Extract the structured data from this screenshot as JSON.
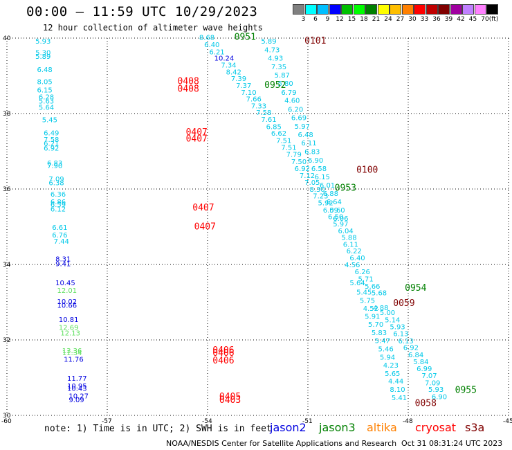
{
  "header": {
    "title": "00:00 – 11:59 UTC 10/29/2023",
    "subtitle": "12 hour collection of altimeter wave heights"
  },
  "colorbar": {
    "colors": [
      "#808080",
      "#00ffff",
      "#00bfff",
      "#0000ff",
      "#00c000",
      "#00ff00",
      "#008000",
      "#ffff00",
      "#ffbf00",
      "#ff8000",
      "#ff0000",
      "#c00000",
      "#800000",
      "#a000a0",
      "#c080ff",
      "#ff80ff",
      "#000000"
    ],
    "labels": [
      "3",
      "6",
      "9",
      "12",
      "15",
      "18",
      "21",
      "24",
      "27",
      "30",
      "33",
      "36",
      "39",
      "42",
      "45",
      "70",
      "(ft)"
    ]
  },
  "axes": {
    "x_ticks": [
      "-60",
      "-57",
      "-54",
      "-51",
      "-48",
      "-45"
    ],
    "x_values": [
      -60,
      -57,
      -54,
      -51,
      -48,
      -45
    ],
    "y_ticks": [
      "30",
      "32",
      "34",
      "36",
      "38",
      "40"
    ],
    "y_values": [
      30,
      32,
      34,
      36,
      38,
      40
    ],
    "x_range": [
      -60,
      -45
    ],
    "y_range": [
      30,
      40
    ]
  },
  "map_data": {
    "colors": {
      "cyan": "#00c8e8",
      "cyan2": "#10b4e0",
      "blue": "#0000e0",
      "lgreen": "#60e060",
      "green": "#008000",
      "red": "#ff0000",
      "maroon": "#800000"
    },
    "labels": [
      {
        "t": "8.68",
        "lon": -54.25,
        "lat": 39.95,
        "c": "cyan"
      },
      {
        "t": "6.40",
        "lon": -54.1,
        "lat": 39.76,
        "c": "cyan"
      },
      {
        "t": "6.21",
        "lon": -53.95,
        "lat": 39.57,
        "c": "cyan"
      },
      {
        "t": "10.24",
        "lon": -53.8,
        "lat": 39.4,
        "c": "blue"
      },
      {
        "t": "7.34",
        "lon": -53.6,
        "lat": 39.22,
        "c": "cyan"
      },
      {
        "t": "8.42",
        "lon": -53.45,
        "lat": 39.04,
        "c": "cyan"
      },
      {
        "t": "7.39",
        "lon": -53.3,
        "lat": 38.86,
        "c": "cyan"
      },
      {
        "t": "7.37",
        "lon": -53.15,
        "lat": 38.68,
        "c": "cyan"
      },
      {
        "t": "7.10",
        "lon": -53.0,
        "lat": 38.5,
        "c": "cyan"
      },
      {
        "t": "7.66",
        "lon": -52.85,
        "lat": 38.32,
        "c": "cyan"
      },
      {
        "t": "7.33",
        "lon": -52.7,
        "lat": 38.14,
        "c": "cyan"
      },
      {
        "t": "7.58",
        "lon": -52.55,
        "lat": 37.96,
        "c": "cyan"
      },
      {
        "t": "7.61",
        "lon": -52.4,
        "lat": 37.78,
        "c": "cyan"
      },
      {
        "t": "6.85",
        "lon": -52.25,
        "lat": 37.59,
        "c": "cyan"
      },
      {
        "t": "6.62",
        "lon": -52.1,
        "lat": 37.41,
        "c": "cyan"
      },
      {
        "t": "7.51",
        "lon": -51.95,
        "lat": 37.22,
        "c": "cyan"
      },
      {
        "t": "7.51",
        "lon": -51.8,
        "lat": 37.04,
        "c": "cyan"
      },
      {
        "t": "7.79",
        "lon": -51.65,
        "lat": 36.85,
        "c": "cyan"
      },
      {
        "t": "7.50",
        "lon": -51.5,
        "lat": 36.66,
        "c": "cyan"
      },
      {
        "t": "6.92",
        "lon": -51.4,
        "lat": 36.48,
        "c": "cyan"
      },
      {
        "t": "7.12",
        "lon": -51.25,
        "lat": 36.29,
        "c": "cyan"
      },
      {
        "t": "7.05",
        "lon": -51.1,
        "lat": 36.11,
        "c": "cyan"
      },
      {
        "t": "8.30",
        "lon": -50.95,
        "lat": 35.93,
        "c": "cyan"
      },
      {
        "t": "7.23",
        "lon": -50.85,
        "lat": 35.75,
        "c": "cyan"
      },
      {
        "t": "5.92",
        "lon": -50.7,
        "lat": 35.57,
        "c": "cyan"
      },
      {
        "t": "6.09",
        "lon": -50.55,
        "lat": 35.38,
        "c": "cyan"
      },
      {
        "t": "6.50",
        "lon": -50.4,
        "lat": 35.2,
        "c": "cyan"
      },
      {
        "t": "5.97",
        "lon": -50.25,
        "lat": 35.01,
        "c": "cyan"
      },
      {
        "t": "6.04",
        "lon": -50.1,
        "lat": 34.83,
        "c": "cyan"
      },
      {
        "t": "5.88",
        "lon": -50.0,
        "lat": 34.65,
        "c": "cyan"
      },
      {
        "t": "6.11",
        "lon": -49.95,
        "lat": 34.47,
        "c": "cyan"
      },
      {
        "t": "6.22",
        "lon": -49.85,
        "lat": 34.29,
        "c": "cyan"
      },
      {
        "t": "6.40",
        "lon": -49.75,
        "lat": 34.11,
        "c": "cyan"
      },
      {
        "t": "4.56",
        "lon": -49.9,
        "lat": 33.93,
        "c": "cyan"
      },
      {
        "t": "6.26",
        "lon": -49.6,
        "lat": 33.74,
        "c": "cyan"
      },
      {
        "t": "5.71",
        "lon": -49.5,
        "lat": 33.55,
        "c": "cyan"
      },
      {
        "t": "5.64",
        "lon": -49.75,
        "lat": 33.45,
        "c": "cyan"
      },
      {
        "t": "5.66",
        "lon": -49.3,
        "lat": 33.36,
        "c": "cyan"
      },
      {
        "t": "5.45",
        "lon": -49.55,
        "lat": 33.2,
        "c": "cyan"
      },
      {
        "t": "5.68",
        "lon": -49.1,
        "lat": 33.18,
        "c": "cyan"
      },
      {
        "t": "5.75",
        "lon": -49.45,
        "lat": 32.98,
        "c": "cyan"
      },
      {
        "t": "4.52",
        "lon": -49.35,
        "lat": 32.77,
        "c": "cyan"
      },
      {
        "t": "4.88",
        "lon": -49.05,
        "lat": 32.79,
        "c": "cyan"
      },
      {
        "t": "5.00",
        "lon": -48.85,
        "lat": 32.66,
        "c": "cyan"
      },
      {
        "t": "5.91",
        "lon": -49.3,
        "lat": 32.56,
        "c": "cyan"
      },
      {
        "t": "5.14",
        "lon": -48.7,
        "lat": 32.47,
        "c": "cyan"
      },
      {
        "t": "5.70",
        "lon": -49.2,
        "lat": 32.35,
        "c": "cyan"
      },
      {
        "t": "5.93",
        "lon": -48.55,
        "lat": 32.28,
        "c": "cyan"
      },
      {
        "t": "5.83",
        "lon": -49.1,
        "lat": 32.13,
        "c": "cyan"
      },
      {
        "t": "6.13",
        "lon": -48.45,
        "lat": 32.1,
        "c": "cyan"
      },
      {
        "t": "5.47",
        "lon": -49.0,
        "lat": 31.92,
        "c": "cyan"
      },
      {
        "t": "6.13",
        "lon": -48.3,
        "lat": 31.91,
        "c": "cyan"
      },
      {
        "t": "6.92",
        "lon": -48.15,
        "lat": 31.73,
        "c": "cyan"
      },
      {
        "t": "5.46",
        "lon": -48.9,
        "lat": 31.7,
        "c": "cyan"
      },
      {
        "t": "6.84",
        "lon": -48.0,
        "lat": 31.54,
        "c": "cyan"
      },
      {
        "t": "5.94",
        "lon": -48.85,
        "lat": 31.48,
        "c": "cyan"
      },
      {
        "t": "5.84",
        "lon": -47.85,
        "lat": 31.36,
        "c": "cyan"
      },
      {
        "t": "4.23",
        "lon": -48.75,
        "lat": 31.27,
        "c": "cyan"
      },
      {
        "t": "6.99",
        "lon": -47.75,
        "lat": 31.17,
        "c": "cyan"
      },
      {
        "t": "5.65",
        "lon": -48.7,
        "lat": 31.05,
        "c": "cyan"
      },
      {
        "t": "7.07",
        "lon": -47.6,
        "lat": 30.99,
        "c": "cyan"
      },
      {
        "t": "4.44",
        "lon": -48.6,
        "lat": 30.84,
        "c": "cyan"
      },
      {
        "t": "7.09",
        "lon": -47.5,
        "lat": 30.8,
        "c": "cyan"
      },
      {
        "t": "5.93",
        "lon": -47.4,
        "lat": 30.62,
        "c": "cyan"
      },
      {
        "t": "8.10",
        "lon": -48.55,
        "lat": 30.62,
        "c": "cyan"
      },
      {
        "t": "6.90",
        "lon": -47.3,
        "lat": 30.43,
        "c": "cyan"
      },
      {
        "t": "5.41",
        "lon": -48.5,
        "lat": 30.4,
        "c": "cyan"
      },
      {
        "t": "5.89",
        "lon": -52.4,
        "lat": 39.85,
        "c": "cyan"
      },
      {
        "t": "4.73",
        "lon": -52.3,
        "lat": 39.62,
        "c": "cyan"
      },
      {
        "t": "4.93",
        "lon": -52.2,
        "lat": 39.4,
        "c": "cyan"
      },
      {
        "t": "7.35",
        "lon": -52.1,
        "lat": 39.17,
        "c": "cyan"
      },
      {
        "t": "5.87",
        "lon": -52.0,
        "lat": 38.95,
        "c": "cyan"
      },
      {
        "t": "5.80",
        "lon": -51.9,
        "lat": 38.73,
        "c": "cyan"
      },
      {
        "t": "6.79",
        "lon": -51.8,
        "lat": 38.5,
        "c": "cyan"
      },
      {
        "t": "4.60",
        "lon": -51.7,
        "lat": 38.28,
        "c": "cyan"
      },
      {
        "t": "6.20",
        "lon": -51.6,
        "lat": 38.05,
        "c": "cyan"
      },
      {
        "t": "6.69",
        "lon": -51.5,
        "lat": 37.83,
        "c": "cyan"
      },
      {
        "t": "5.97",
        "lon": -51.4,
        "lat": 37.6,
        "c": "cyan"
      },
      {
        "t": "6.48",
        "lon": -51.3,
        "lat": 37.38,
        "c": "cyan"
      },
      {
        "t": "6.11",
        "lon": -51.2,
        "lat": 37.16,
        "c": "cyan"
      },
      {
        "t": "6.83",
        "lon": -51.1,
        "lat": 36.93,
        "c": "cyan"
      },
      {
        "t": "6.90",
        "lon": -51.0,
        "lat": 36.7,
        "c": "cyan"
      },
      {
        "t": "6.58",
        "lon": -50.9,
        "lat": 36.48,
        "c": "cyan"
      },
      {
        "t": "6.15",
        "lon": -50.8,
        "lat": 36.26,
        "c": "cyan"
      },
      {
        "t": "6.01",
        "lon": -50.65,
        "lat": 36.04,
        "c": "cyan"
      },
      {
        "t": "6.88",
        "lon": -50.55,
        "lat": 35.82,
        "c": "cyan"
      },
      {
        "t": "6.64",
        "lon": -50.45,
        "lat": 35.6,
        "c": "cyan"
      },
      {
        "t": "5.60",
        "lon": -50.35,
        "lat": 35.38,
        "c": "cyan"
      },
      {
        "t": "6.06",
        "lon": -50.25,
        "lat": 35.16,
        "c": "cyan"
      },
      {
        "t": "5.93",
        "lon": -59.15,
        "lat": 39.85,
        "c": "cyan"
      },
      {
        "t": "5.30",
        "lon": -59.15,
        "lat": 39.55,
        "c": "cyan"
      },
      {
        "t": "5.89",
        "lon": -59.15,
        "lat": 39.45,
        "c": "cyan"
      },
      {
        "t": "6.48",
        "lon": -59.1,
        "lat": 39.1,
        "c": "cyan"
      },
      {
        "t": "8.05",
        "lon": -59.1,
        "lat": 38.78,
        "c": "cyan"
      },
      {
        "t": "6.15",
        "lon": -59.1,
        "lat": 38.56,
        "c": "cyan"
      },
      {
        "t": "6.28",
        "lon": -59.05,
        "lat": 38.38,
        "c": "cyan"
      },
      {
        "t": "5.63",
        "lon": -59.05,
        "lat": 38.27,
        "c": "cyan"
      },
      {
        "t": "5.64",
        "lon": -59.05,
        "lat": 38.1,
        "c": "cyan"
      },
      {
        "t": "5.45",
        "lon": -58.95,
        "lat": 37.77,
        "c": "cyan"
      },
      {
        "t": "6.49",
        "lon": -58.9,
        "lat": 37.42,
        "c": "cyan"
      },
      {
        "t": "7.58",
        "lon": -58.9,
        "lat": 37.25,
        "c": "cyan"
      },
      {
        "t": "6.21",
        "lon": -58.9,
        "lat": 37.15,
        "c": "cyan"
      },
      {
        "t": "6.92",
        "lon": -58.9,
        "lat": 37.02,
        "c": "cyan"
      },
      {
        "t": "6.83",
        "lon": -58.8,
        "lat": 36.62,
        "c": "cyan"
      },
      {
        "t": "7.90",
        "lon": -58.8,
        "lat": 36.55,
        "c": "cyan"
      },
      {
        "t": "7.09",
        "lon": -58.75,
        "lat": 36.2,
        "c": "cyan"
      },
      {
        "t": "6.38",
        "lon": -58.75,
        "lat": 36.1,
        "c": "cyan"
      },
      {
        "t": "6.36",
        "lon": -58.7,
        "lat": 35.8,
        "c": "cyan"
      },
      {
        "t": "6.86",
        "lon": -58.7,
        "lat": 35.6,
        "c": "cyan"
      },
      {
        "t": "6.59",
        "lon": -58.7,
        "lat": 35.52,
        "c": "cyan"
      },
      {
        "t": "6.12",
        "lon": -58.7,
        "lat": 35.4,
        "c": "cyan"
      },
      {
        "t": "6.61",
        "lon": -58.65,
        "lat": 34.92,
        "c": "cyan"
      },
      {
        "t": "6.76",
        "lon": -58.65,
        "lat": 34.72,
        "c": "cyan"
      },
      {
        "t": "7.44",
        "lon": -58.6,
        "lat": 34.55,
        "c": "cyan"
      },
      {
        "t": "8.31",
        "lon": -58.55,
        "lat": 34.08,
        "c": "blue"
      },
      {
        "t": "9.41",
        "lon": -58.55,
        "lat": 33.95,
        "c": "blue"
      },
      {
        "t": "10.45",
        "lon": -58.55,
        "lat": 33.45,
        "c": "blue"
      },
      {
        "t": "12.01",
        "lon": -58.5,
        "lat": 33.25,
        "c": "lgreen"
      },
      {
        "t": "10.02",
        "lon": -58.5,
        "lat": 32.95,
        "c": "blue"
      },
      {
        "t": "10.66",
        "lon": -58.5,
        "lat": 32.85,
        "c": "blue"
      },
      {
        "t": "10.81",
        "lon": -58.45,
        "lat": 32.48,
        "c": "blue"
      },
      {
        "t": "12.69",
        "lon": -58.45,
        "lat": 32.27,
        "c": "lgreen"
      },
      {
        "t": "12.13",
        "lon": -58.4,
        "lat": 32.12,
        "c": "lgreen"
      },
      {
        "t": "13.36",
        "lon": -58.35,
        "lat": 31.65,
        "c": "lgreen"
      },
      {
        "t": "11.34",
        "lon": -58.35,
        "lat": 31.6,
        "c": "lgreen"
      },
      {
        "t": "11.76",
        "lon": -58.3,
        "lat": 31.42,
        "c": "blue"
      },
      {
        "t": "11.77",
        "lon": -58.2,
        "lat": 30.92,
        "c": "blue"
      },
      {
        "t": "10.95",
        "lon": -58.2,
        "lat": 30.72,
        "c": "blue"
      },
      {
        "t": "10.43",
        "lon": -58.2,
        "lat": 30.65,
        "c": "blue"
      },
      {
        "t": "10.27",
        "lon": -58.15,
        "lat": 30.45,
        "c": "blue"
      },
      {
        "t": "9.09",
        "lon": -58.15,
        "lat": 30.35,
        "c": "blue"
      },
      {
        "t": "0951",
        "lon": -53.2,
        "lat": 39.95,
        "c": "green",
        "big": true
      },
      {
        "t": "0101",
        "lon": -51.1,
        "lat": 39.85,
        "c": "maroon",
        "big": true
      },
      {
        "t": "0952",
        "lon": -52.3,
        "lat": 38.68,
        "c": "green",
        "big": true
      },
      {
        "t": "0408",
        "lon": -54.9,
        "lat": 38.78,
        "c": "red",
        "big": true
      },
      {
        "t": "0408",
        "lon": -54.9,
        "lat": 38.58,
        "c": "red",
        "big": true
      },
      {
        "t": "0407",
        "lon": -54.65,
        "lat": 37.43,
        "c": "red",
        "big": true
      },
      {
        "t": "0407",
        "lon": -54.65,
        "lat": 37.26,
        "c": "red",
        "big": true
      },
      {
        "t": "0100",
        "lon": -49.55,
        "lat": 36.43,
        "c": "maroon",
        "big": true
      },
      {
        "t": "0953",
        "lon": -50.2,
        "lat": 35.95,
        "c": "green",
        "big": true
      },
      {
        "t": "0407",
        "lon": -54.45,
        "lat": 35.43,
        "c": "red",
        "big": true
      },
      {
        "t": "0407",
        "lon": -54.4,
        "lat": 34.93,
        "c": "red",
        "big": true
      },
      {
        "t": "0954",
        "lon": -48.1,
        "lat": 33.3,
        "c": "green",
        "big": true
      },
      {
        "t": "0059",
        "lon": -48.45,
        "lat": 32.9,
        "c": "maroon",
        "big": true
      },
      {
        "t": "0406",
        "lon": -53.85,
        "lat": 31.65,
        "c": "red",
        "big": true
      },
      {
        "t": "0406",
        "lon": -53.85,
        "lat": 31.58,
        "c": "red",
        "big": true
      },
      {
        "t": "0406",
        "lon": -53.85,
        "lat": 31.38,
        "c": "red",
        "big": true
      },
      {
        "t": "0405",
        "lon": -53.65,
        "lat": 30.42,
        "c": "red",
        "big": true
      },
      {
        "t": "0403",
        "lon": -53.65,
        "lat": 30.33,
        "c": "red",
        "big": true
      },
      {
        "t": "0955",
        "lon": -46.6,
        "lat": 30.6,
        "c": "green",
        "big": true
      },
      {
        "t": "0058",
        "lon": -47.8,
        "lat": 30.25,
        "c": "maroon",
        "big": true
      }
    ]
  },
  "note": "note: 1) Time is in UTC; 2) SWH is in feet",
  "legend": [
    {
      "name": "jason2",
      "color": "#0000e0"
    },
    {
      "name": "jason3",
      "color": "#008000"
    },
    {
      "name": "altika",
      "color": "#ff8000"
    },
    {
      "name": "cryosat",
      "color": "#ff0000"
    },
    {
      "name": "s3a",
      "color": "#800000"
    }
  ],
  "footer": {
    "org": "NOAA/NESDIS Center for Satellite Applications and Research",
    "timestamp": "Oct 31 08:31:24 UTC 2023"
  }
}
